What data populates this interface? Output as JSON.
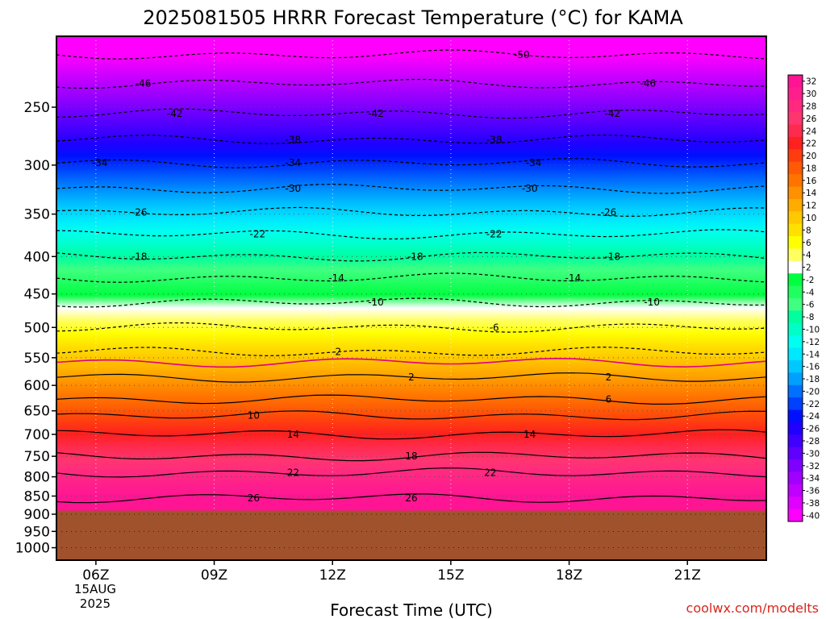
{
  "chart_data": {
    "type": "heatmap",
    "title": "2025081505 HRRR Forecast Temperature (°C) for KAMA",
    "xlabel": "Forecast Time (UTC)",
    "ylabel": "",
    "credit": "coolwx.com/modelts",
    "x_ticks": [
      {
        "label": "06Z",
        "hour": 6
      },
      {
        "label": "09Z",
        "hour": 9
      },
      {
        "label": "12Z",
        "hour": 12
      },
      {
        "label": "15Z",
        "hour": 15
      },
      {
        "label": "18Z",
        "hour": 18
      },
      {
        "label": "21Z",
        "hour": 21
      }
    ],
    "x_date_lines": [
      "15AUG",
      "2025"
    ],
    "xlim": [
      5,
      23
    ],
    "y_scale": "log-pressure",
    "y_ticks": [
      250,
      300,
      350,
      400,
      450,
      500,
      550,
      600,
      650,
      700,
      750,
      800,
      850,
      900,
      950,
      1000
    ],
    "ylim": [
      1040,
      200
    ],
    "below_ground_level_hPa": 890,
    "below_ground_color": "#a0522d",
    "colorbar": {
      "ticks": [
        "32",
        "30",
        "28",
        "26",
        "24",
        "22",
        "20",
        "18",
        "16",
        "14",
        "12",
        "10",
        "8",
        "6",
        "4",
        "2",
        "-2",
        "-4",
        "-6",
        "-8",
        "-10",
        "-12",
        "-14",
        "-16",
        "-18",
        "-20",
        "-22",
        "-24",
        "-26",
        "-28",
        "-30",
        "-32",
        "-34",
        "-36",
        "-38",
        "-40"
      ],
      "colors": [
        "#ff1493",
        "#ff1f8c",
        "#ff2a80",
        "#ff3570",
        "#ff2b4e",
        "#ff2020",
        "#ff3c10",
        "#ff5a05",
        "#ff7400",
        "#ff9000",
        "#ffac00",
        "#ffc800",
        "#ffe000",
        "#ffff00",
        "#ffff60",
        "#ffffff",
        "#00ff40",
        "#20ff60",
        "#40ff80",
        "#00ff9f",
        "#00ffc8",
        "#00ffee",
        "#00e8ff",
        "#00c8ff",
        "#00a0ff",
        "#0070ff",
        "#0040ff",
        "#0010ff",
        "#2000ff",
        "#4000ff",
        "#6000ff",
        "#8000ff",
        "#a000ff",
        "#c000ff",
        "#e000ff",
        "#ff00ff"
      ]
    },
    "contours": [
      {
        "label": "-50",
        "pressure": 212,
        "labels": [
          {
            "hour": 16.8,
            "text": "-50"
          }
        ],
        "style": "dashed"
      },
      {
        "label": "-46",
        "pressure": 232,
        "labels": [
          {
            "hour": 7.2,
            "text": "-46"
          },
          {
            "hour": 20.0,
            "text": "-46"
          }
        ],
        "style": "dashed"
      },
      {
        "label": "-42",
        "pressure": 255,
        "labels": [
          {
            "hour": 8.0,
            "text": "-42"
          },
          {
            "hour": 13.1,
            "text": "-42"
          },
          {
            "hour": 19.1,
            "text": "-42"
          }
        ],
        "style": "dashed"
      },
      {
        "label": "-38",
        "pressure": 277,
        "labels": [
          {
            "hour": 11.0,
            "text": "-38"
          },
          {
            "hour": 16.1,
            "text": "-38"
          }
        ],
        "style": "dashed"
      },
      {
        "label": "-34",
        "pressure": 298,
        "labels": [
          {
            "hour": 6.1,
            "text": "-34"
          },
          {
            "hour": 11.0,
            "text": "-34"
          },
          {
            "hour": 17.1,
            "text": "-34"
          }
        ],
        "style": "dashed"
      },
      {
        "label": "-30",
        "pressure": 323,
        "labels": [
          {
            "hour": 11.0,
            "text": "-30"
          },
          {
            "hour": 17.0,
            "text": "-30"
          }
        ],
        "style": "dashed"
      },
      {
        "label": "-26",
        "pressure": 348,
        "labels": [
          {
            "hour": 7.1,
            "text": "-26"
          },
          {
            "hour": 19.0,
            "text": "-26"
          }
        ],
        "style": "dashed"
      },
      {
        "label": "-22",
        "pressure": 373,
        "labels": [
          {
            "hour": 10.1,
            "text": "-22"
          },
          {
            "hour": 16.1,
            "text": "-22"
          }
        ],
        "style": "dashed"
      },
      {
        "label": "-18",
        "pressure": 400,
        "labels": [
          {
            "hour": 7.1,
            "text": "-18"
          },
          {
            "hour": 14.1,
            "text": "-18"
          },
          {
            "hour": 19.1,
            "text": "-18"
          }
        ],
        "style": "dashed"
      },
      {
        "label": "-14",
        "pressure": 428,
        "labels": [
          {
            "hour": 12.1,
            "text": "-14"
          },
          {
            "hour": 18.1,
            "text": "-14"
          }
        ],
        "style": "dashed"
      },
      {
        "label": "-10",
        "pressure": 462,
        "labels": [
          {
            "hour": 13.1,
            "text": "-10"
          },
          {
            "hour": 20.1,
            "text": "-10"
          }
        ],
        "style": "dashed"
      },
      {
        "label": "-6",
        "pressure": 500,
        "labels": [
          {
            "hour": 16.1,
            "text": "-6"
          }
        ],
        "style": "dashed"
      },
      {
        "label": "-2",
        "pressure": 540,
        "labels": [
          {
            "hour": 12.1,
            "text": "-2"
          }
        ],
        "style": "dashed"
      },
      {
        "label": "2",
        "pressure": 585,
        "labels": [
          {
            "hour": 14.0,
            "text": "2"
          },
          {
            "hour": 19.0,
            "text": "2"
          }
        ],
        "style": "solid"
      },
      {
        "label": "6",
        "pressure": 627,
        "labels": [
          {
            "hour": 19.0,
            "text": "6"
          }
        ],
        "style": "solid"
      },
      {
        "label": "10",
        "pressure": 660,
        "labels": [
          {
            "hour": 10.0,
            "text": "10"
          }
        ],
        "style": "solid"
      },
      {
        "label": "14",
        "pressure": 700,
        "labels": [
          {
            "hour": 11.0,
            "text": "14"
          },
          {
            "hour": 17.0,
            "text": "14"
          }
        ],
        "style": "solid"
      },
      {
        "label": "18",
        "pressure": 750,
        "labels": [
          {
            "hour": 14.0,
            "text": "18"
          }
        ],
        "style": "solid"
      },
      {
        "label": "22",
        "pressure": 790,
        "labels": [
          {
            "hour": 11.0,
            "text": "22"
          },
          {
            "hour": 16.0,
            "text": "22"
          }
        ],
        "style": "solid"
      },
      {
        "label": "26",
        "pressure": 855,
        "labels": [
          {
            "hour": 10.0,
            "text": "26"
          },
          {
            "hour": 14.0,
            "text": "26"
          }
        ],
        "style": "solid"
      }
    ],
    "zero_line": {
      "pressure": 558,
      "color": "#e0007f"
    },
    "grid": true
  }
}
